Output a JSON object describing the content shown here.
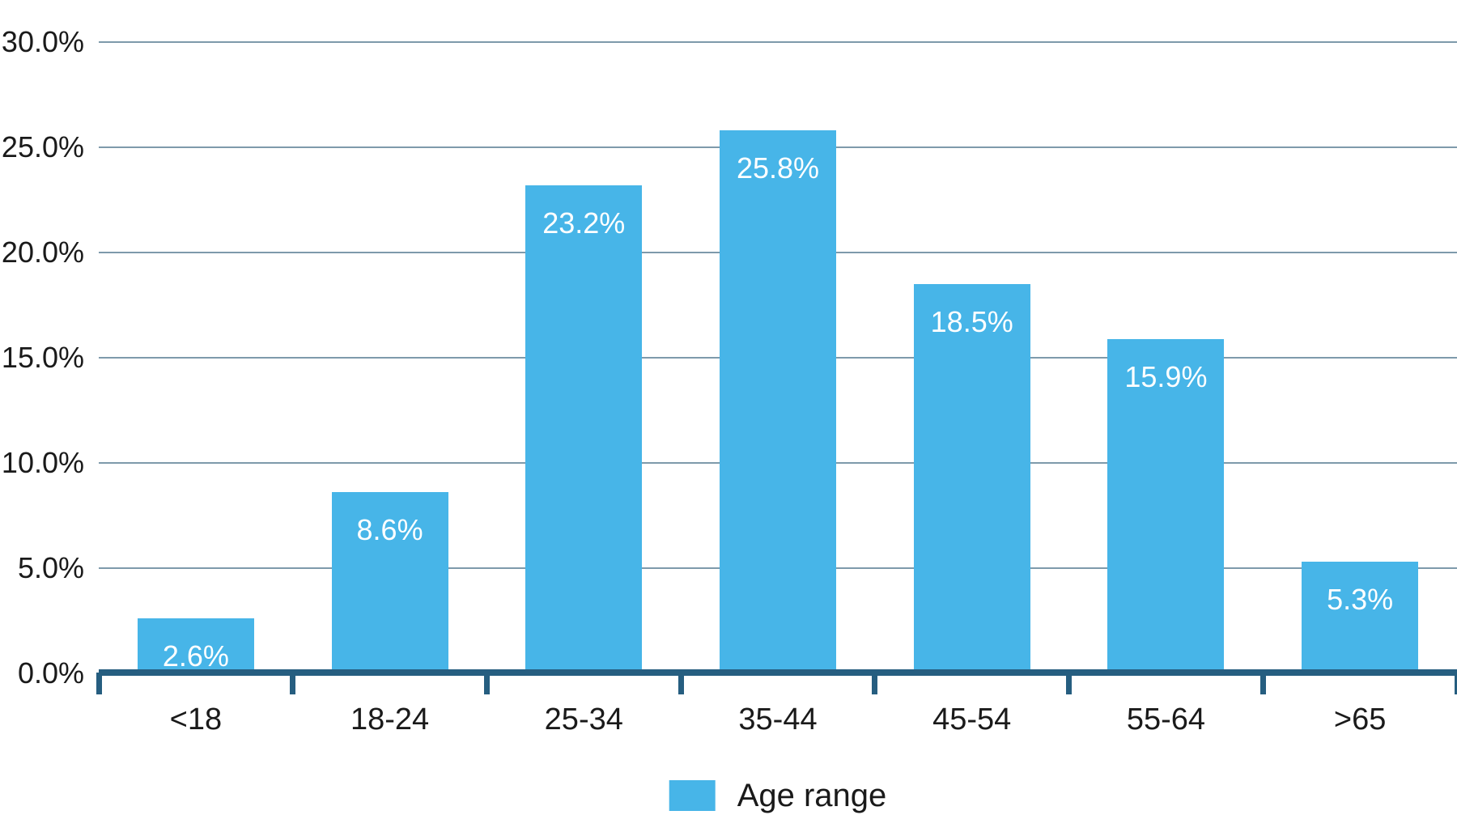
{
  "chart_data": {
    "type": "bar",
    "title": "",
    "categories": [
      "<18",
      "18-24",
      "25-34",
      "35-44",
      "45-54",
      "55-64",
      ">65"
    ],
    "values": [
      2.6,
      8.6,
      23.2,
      25.8,
      18.5,
      15.9,
      5.3
    ],
    "value_labels": [
      "2.6%",
      "8.6%",
      "23.2%",
      "25.8%",
      "18.5%",
      "15.9%",
      "5.3%"
    ],
    "xlabel": "",
    "ylabel": "",
    "ylim": [
      0,
      30
    ],
    "y_ticks": [
      {
        "value": 30,
        "label": "30.0%"
      },
      {
        "value": 25,
        "label": "25.0%"
      },
      {
        "value": 20,
        "label": "20.0%"
      },
      {
        "value": 15,
        "label": "15.0%"
      },
      {
        "value": 10,
        "label": "10.0%"
      },
      {
        "value": 5,
        "label": "5.0%"
      },
      {
        "value": 0,
        "label": "0.0%"
      }
    ],
    "grid": true,
    "legend": {
      "label": "Age range",
      "position": "bottom-center"
    },
    "colors": {
      "bar": "#47B5E8",
      "axis": "#265E80",
      "gridline": "#7E9AAB",
      "text": "#1A1A1A",
      "bar_label_text": "#FFFFFF"
    }
  }
}
